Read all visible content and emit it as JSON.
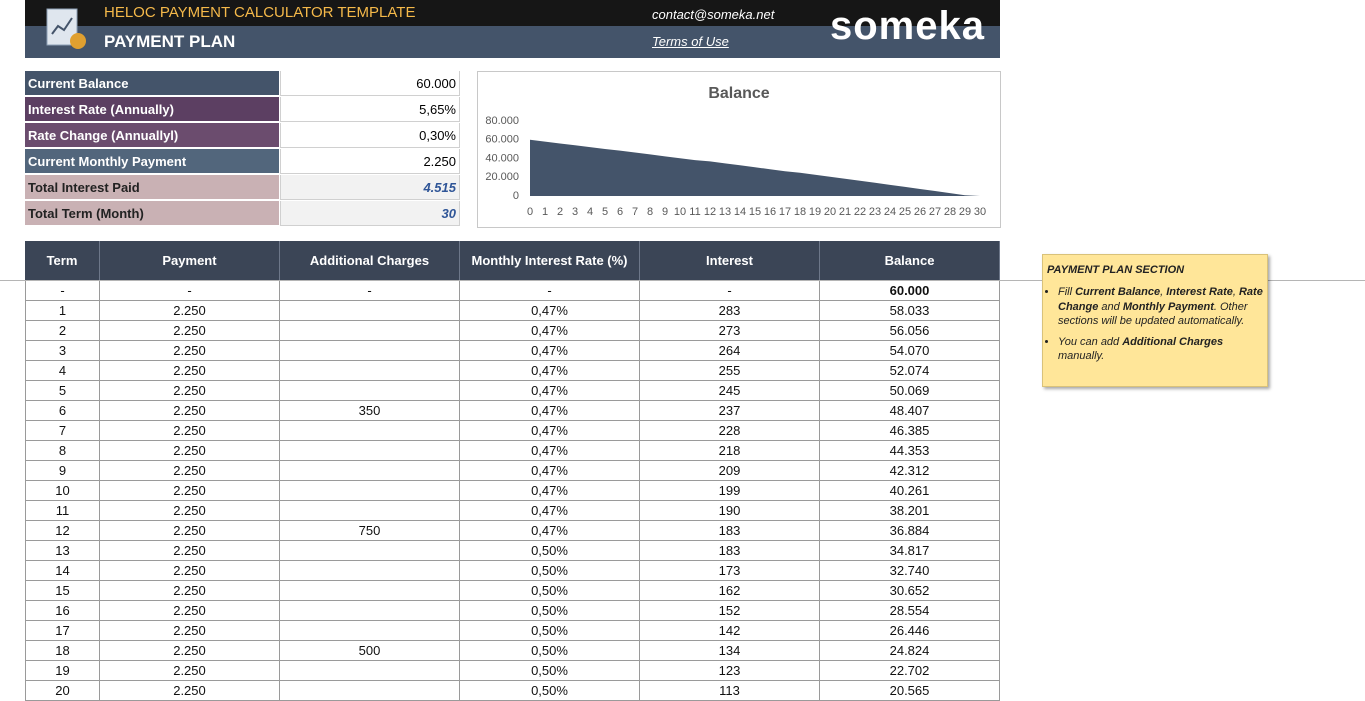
{
  "header": {
    "title": "HELOC PAYMENT CALCULATOR TEMPLATE",
    "subtitle": "PAYMENT PLAN",
    "contact": "contact@someka.net",
    "terms": "Terms of Use",
    "logo": "someka"
  },
  "summary": {
    "rows": [
      {
        "label": "Current Balance",
        "value": "60.000",
        "color": "#44546a"
      },
      {
        "label": "Interest Rate (Annually)",
        "value": "5,65%",
        "color": "#5c3f62"
      },
      {
        "label": "Rate Change (Annuallyl)",
        "value": "0,30%",
        "color": "#6b4c6e"
      },
      {
        "label": "Current Monthly Payment",
        "value": "2.250",
        "color": "#52667c"
      },
      {
        "label": "Total Interest Paid",
        "value": "4.515",
        "color": "#c9b1b4"
      },
      {
        "label": "Total Term (Month)",
        "value": "30",
        "color": "#c9b1b4"
      }
    ]
  },
  "chart_data": {
    "type": "area",
    "title": "Balance",
    "color": "#44546a",
    "x": [
      0,
      1,
      2,
      3,
      4,
      5,
      6,
      7,
      8,
      9,
      10,
      11,
      12,
      13,
      14,
      15,
      16,
      17,
      18,
      19,
      20,
      21,
      22,
      23,
      24,
      25,
      26,
      27,
      28,
      29,
      30
    ],
    "values": [
      60000,
      58033,
      56056,
      54070,
      52074,
      50069,
      48407,
      46385,
      44353,
      42312,
      40261,
      38201,
      36884,
      34817,
      32740,
      30652,
      28554,
      26446,
      24824,
      22702,
      20565,
      18418,
      16260,
      14091,
      11911,
      9723,
      7524,
      5313,
      3091,
      857,
      0
    ],
    "xlim": [
      0,
      30
    ],
    "xticks": [
      0,
      1,
      2,
      3,
      4,
      5,
      6,
      7,
      8,
      9,
      10,
      11,
      12,
      13,
      14,
      15,
      16,
      17,
      18,
      19,
      20,
      21,
      22,
      23,
      24,
      25,
      26,
      27,
      28,
      29,
      30
    ],
    "ylim": [
      0,
      80000
    ],
    "yticks": [
      0,
      {
        "value": 20000,
        "label": "20.000"
      },
      {
        "value": 40000,
        "label": "40.000"
      },
      {
        "value": 60000,
        "label": "60.000"
      },
      {
        "value": 80000,
        "label": "80.000"
      }
    ]
  },
  "table": {
    "columns": [
      "Term",
      "Payment",
      "Additional Charges",
      "Monthly Interest Rate (%)",
      "Interest",
      "Balance"
    ],
    "rows": [
      [
        "-",
        "-",
        "-",
        "-",
        "-",
        "60.000"
      ],
      [
        "1",
        "2.250",
        null,
        "0,47%",
        "283",
        "58.033"
      ],
      [
        "2",
        "2.250",
        null,
        "0,47%",
        "273",
        "56.056"
      ],
      [
        "3",
        "2.250",
        null,
        "0,47%",
        "264",
        "54.070"
      ],
      [
        "4",
        "2.250",
        null,
        "0,47%",
        "255",
        "52.074"
      ],
      [
        "5",
        "2.250",
        null,
        "0,47%",
        "245",
        "50.069"
      ],
      [
        "6",
        "2.250",
        "350",
        "0,47%",
        "237",
        "48.407"
      ],
      [
        "7",
        "2.250",
        null,
        "0,47%",
        "228",
        "46.385"
      ],
      [
        "8",
        "2.250",
        null,
        "0,47%",
        "218",
        "44.353"
      ],
      [
        "9",
        "2.250",
        null,
        "0,47%",
        "209",
        "42.312"
      ],
      [
        "10",
        "2.250",
        null,
        "0,47%",
        "199",
        "40.261"
      ],
      [
        "11",
        "2.250",
        null,
        "0,47%",
        "190",
        "38.201"
      ],
      [
        "12",
        "2.250",
        "750",
        "0,47%",
        "183",
        "36.884"
      ],
      [
        "13",
        "2.250",
        null,
        "0,50%",
        "183",
        "34.817"
      ],
      [
        "14",
        "2.250",
        null,
        "0,50%",
        "173",
        "32.740"
      ],
      [
        "15",
        "2.250",
        null,
        "0,50%",
        "162",
        "30.652"
      ],
      [
        "16",
        "2.250",
        null,
        "0,50%",
        "152",
        "28.554"
      ],
      [
        "17",
        "2.250",
        null,
        "0,50%",
        "142",
        "26.446"
      ],
      [
        "18",
        "2.250",
        "500",
        "0,50%",
        "134",
        "24.824"
      ],
      [
        "19",
        "2.250",
        null,
        "0,50%",
        "123",
        "22.702"
      ],
      [
        "20",
        "2.250",
        null,
        "0,50%",
        "113",
        "20.565"
      ]
    ]
  },
  "note": {
    "title": "PAYMENT PLAN SECTION",
    "bullets": [
      [
        {
          "text": "Fill "
        },
        {
          "text": "Current Balance",
          "bold": true
        },
        {
          "text": ", "
        },
        {
          "text": "Interest Rate",
          "bold": true
        },
        {
          "text": ", "
        },
        {
          "text": "Rate Change",
          "bold": true
        },
        {
          "text": " and "
        },
        {
          "text": "Monthly Payment",
          "bold": true
        },
        {
          "text": ". Other sections will be updated automatically."
        }
      ],
      [
        {
          "text": "You can add "
        },
        {
          "text": "Additional Charges",
          "bold": true
        },
        {
          "text": " manually."
        }
      ]
    ]
  }
}
